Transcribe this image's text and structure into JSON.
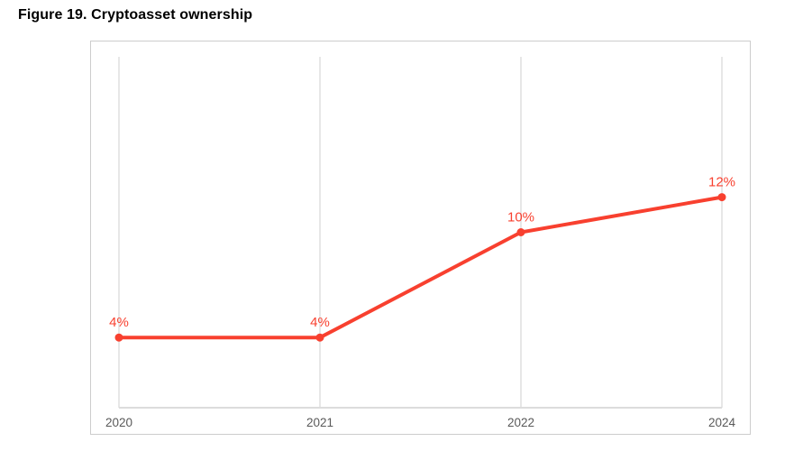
{
  "page": {
    "title": "Figure 19. Cryptoasset ownership"
  },
  "chart_data": {
    "type": "line",
    "title": "Figure 19. Cryptoasset ownership",
    "categories": [
      "2020",
      "2021",
      "2022",
      "2024"
    ],
    "values": [
      4,
      4,
      10,
      12
    ],
    "data_labels": [
      "4%",
      "4%",
      "10%",
      "12%"
    ],
    "unit": "%",
    "xlabel": "",
    "ylabel": "",
    "ylim": [
      0,
      20
    ],
    "grid": "vertical-gridlines-only",
    "legend": "none",
    "colors": {
      "series": "#f8402f",
      "gridline": "#e7e7e7",
      "axis_line": "#dcdcdc",
      "frame_border": "#cdcdcd",
      "tick_label": "#595959",
      "data_label": "#f8402f",
      "title_text": "#000000"
    }
  }
}
